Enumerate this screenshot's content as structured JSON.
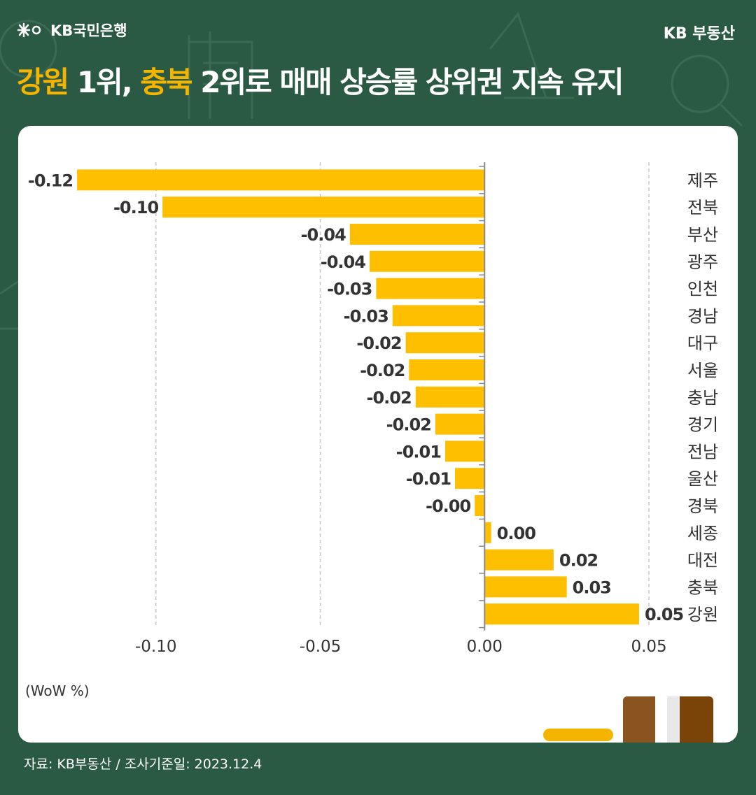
{
  "header": {
    "logo_text": "KB국민은행",
    "logo_icon": "kb-star-icon",
    "brand": "KB 부동산"
  },
  "title": {
    "hl1": "강원",
    "t1": " 1위, ",
    "hl2": "충북",
    "t2": " 2위로 매매 상승률 상위권 지속 유지"
  },
  "colors": {
    "background": "#2b5a44",
    "highlight": "#f5b400",
    "bar": "#fdbf00",
    "card": "#ffffff"
  },
  "chart_data": {
    "type": "bar",
    "orientation": "horizontal",
    "categories": [
      "제주",
      "전북",
      "부산",
      "광주",
      "인천",
      "경남",
      "대구",
      "서울",
      "충남",
      "경기",
      "전남",
      "울산",
      "경북",
      "세종",
      "대전",
      "충북",
      "강원"
    ],
    "values": [
      -0.124,
      -0.098,
      -0.041,
      -0.035,
      -0.033,
      -0.028,
      -0.024,
      -0.023,
      -0.021,
      -0.015,
      -0.012,
      -0.009,
      -0.003,
      0.002,
      0.021,
      0.025,
      0.047
    ],
    "data_labels": [
      "-0.12",
      "-0.10",
      "-0.04",
      "-0.04",
      "-0.03",
      "-0.03",
      "-0.02",
      "-0.02",
      "-0.02",
      "-0.02",
      "-0.01",
      "-0.01",
      "-0.00",
      "0.00",
      "0.02",
      "0.03",
      "0.05"
    ],
    "xlim": [
      -0.127,
      0.06
    ],
    "xticks": [
      -0.1,
      -0.05,
      0.0,
      0.05
    ],
    "xtick_labels": [
      "-0.10",
      "-0.05",
      "0.00",
      "0.05"
    ],
    "unit_label": "(WoW %)",
    "grid": "dashed vertical"
  },
  "footer": {
    "source": "자료: KB부동산 / 조사기준일: 2023.12.4"
  }
}
